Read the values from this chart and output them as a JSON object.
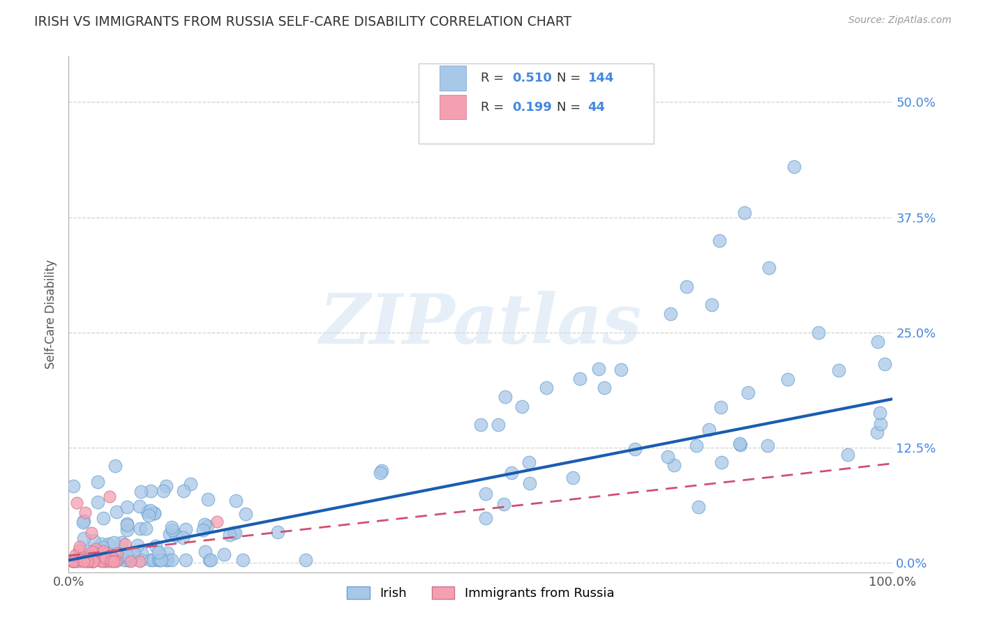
{
  "title": "IRISH VS IMMIGRANTS FROM RUSSIA SELF-CARE DISABILITY CORRELATION CHART",
  "source": "Source: ZipAtlas.com",
  "ylabel": "Self-Care Disability",
  "xlim": [
    0.0,
    1.0
  ],
  "ylim": [
    -0.01,
    0.55
  ],
  "yticks": [
    0.0,
    0.125,
    0.25,
    0.375,
    0.5
  ],
  "right_ytick_labels": [
    "0.0%",
    "12.5%",
    "25.0%",
    "37.5%",
    "50.0%"
  ],
  "xticks": [
    0.0,
    1.0
  ],
  "xtick_labels": [
    "0.0%",
    "100.0%"
  ],
  "irish_color": "#a8c8e8",
  "irish_edge_color": "#6aa0d0",
  "russian_color": "#f4a0b0",
  "russian_edge_color": "#d07090",
  "irish_line_color": "#1a5cb0",
  "russian_line_color": "#d05070",
  "irish_R": 0.51,
  "irish_N": 144,
  "russian_R": 0.199,
  "russian_N": 44,
  "legend_label_irish": "Irish",
  "legend_label_russian": "Immigrants from Russia",
  "watermark": "ZIPatlas",
  "background_color": "#ffffff",
  "grid_color": "#d0d0d0",
  "title_color": "#333333",
  "right_label_color": "#4488dd"
}
